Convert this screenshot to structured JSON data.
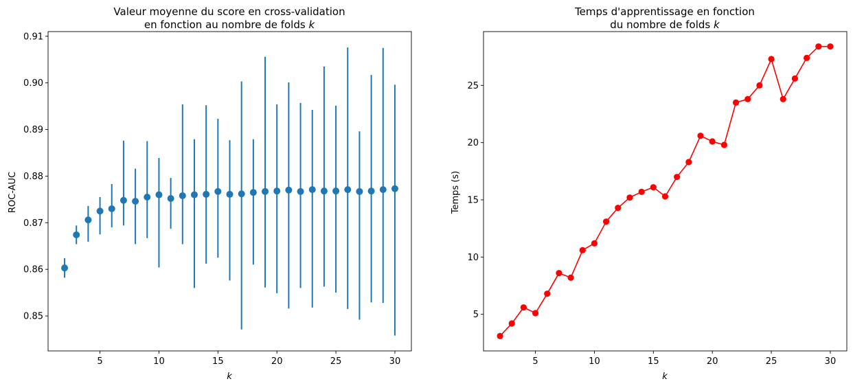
{
  "chart_data": [
    {
      "type": "scatter",
      "title_line1": "Valeur moyenne du score en cross-validation",
      "title_line2": "en fonction au nombre de folds ",
      "title_italic": "k",
      "xlabel": "k",
      "ylabel": "ROC-AUC",
      "xlim": [
        0.6,
        31.4
      ],
      "ylim": [
        0.8425,
        0.911
      ],
      "xticks": [
        5,
        10,
        15,
        20,
        25,
        30
      ],
      "yticks": [
        0.85,
        0.86,
        0.87,
        0.88,
        0.89,
        0.9,
        0.91
      ],
      "ytick_labels": [
        "0.85",
        "0.86",
        "0.87",
        "0.88",
        "0.89",
        "0.90",
        "0.91"
      ],
      "grid": false,
      "color": "#1f77b4",
      "x": [
        2,
        3,
        4,
        5,
        6,
        7,
        8,
        9,
        10,
        11,
        12,
        13,
        14,
        15,
        16,
        17,
        18,
        19,
        20,
        21,
        22,
        23,
        24,
        25,
        26,
        27,
        28,
        29,
        30
      ],
      "y": [
        0.8603,
        0.8674,
        0.8706,
        0.8725,
        0.873,
        0.8748,
        0.8746,
        0.8755,
        0.876,
        0.8752,
        0.8758,
        0.876,
        0.8761,
        0.8767,
        0.8761,
        0.8762,
        0.8765,
        0.8767,
        0.8768,
        0.877,
        0.8767,
        0.8771,
        0.8768,
        0.8768,
        0.8771,
        0.8767,
        0.8768,
        0.8771,
        0.8773
      ],
      "yerr_low": [
        0.8582,
        0.8654,
        0.8659,
        0.8675,
        0.869,
        0.8694,
        0.8654,
        0.8667,
        0.8604,
        0.8687,
        0.8654,
        0.856,
        0.8612,
        0.8625,
        0.8576,
        0.8471,
        0.861,
        0.8561,
        0.8549,
        0.8516,
        0.856,
        0.8518,
        0.8563,
        0.855,
        0.8515,
        0.8492,
        0.8529,
        0.8528,
        0.8458
      ],
      "yerr_high": [
        0.8624,
        0.8694,
        0.8736,
        0.8755,
        0.8783,
        0.8876,
        0.8816,
        0.8875,
        0.8839,
        0.8796,
        0.8954,
        0.8879,
        0.8952,
        0.8923,
        0.8877,
        0.9003,
        0.8879,
        0.9056,
        0.8954,
        0.9001,
        0.8957,
        0.8942,
        0.9035,
        0.8951,
        0.9076,
        0.8896,
        0.9017,
        0.9075,
        0.8996
      ]
    },
    {
      "type": "line",
      "title_line1": "Temps d'apprentissage en fonction",
      "title_line2": "du nombre de folds ",
      "title_italic": "k",
      "xlabel": "k",
      "ylabel": "Temps (s)",
      "xlim": [
        0.6,
        31.4
      ],
      "ylim": [
        1.8,
        29.7
      ],
      "xticks": [
        5,
        10,
        15,
        20,
        25,
        30
      ],
      "yticks": [
        5,
        10,
        15,
        20,
        25
      ],
      "ytick_labels": [
        "5",
        "10",
        "15",
        "20",
        "25"
      ],
      "grid": false,
      "color": "#ff0000",
      "marker": "circle",
      "x": [
        2,
        3,
        4,
        5,
        6,
        7,
        8,
        9,
        10,
        11,
        12,
        13,
        14,
        15,
        16,
        17,
        18,
        19,
        20,
        21,
        22,
        23,
        24,
        25,
        26,
        27,
        28,
        29,
        30
      ],
      "y": [
        3.1,
        4.2,
        5.6,
        5.1,
        6.8,
        8.6,
        8.2,
        10.6,
        11.2,
        13.1,
        14.3,
        15.2,
        15.7,
        16.1,
        15.3,
        17.0,
        18.3,
        20.6,
        20.1,
        19.8,
        23.5,
        23.8,
        25.0,
        27.3,
        23.8,
        25.6,
        27.4,
        28.4,
        28.4
      ]
    }
  ]
}
